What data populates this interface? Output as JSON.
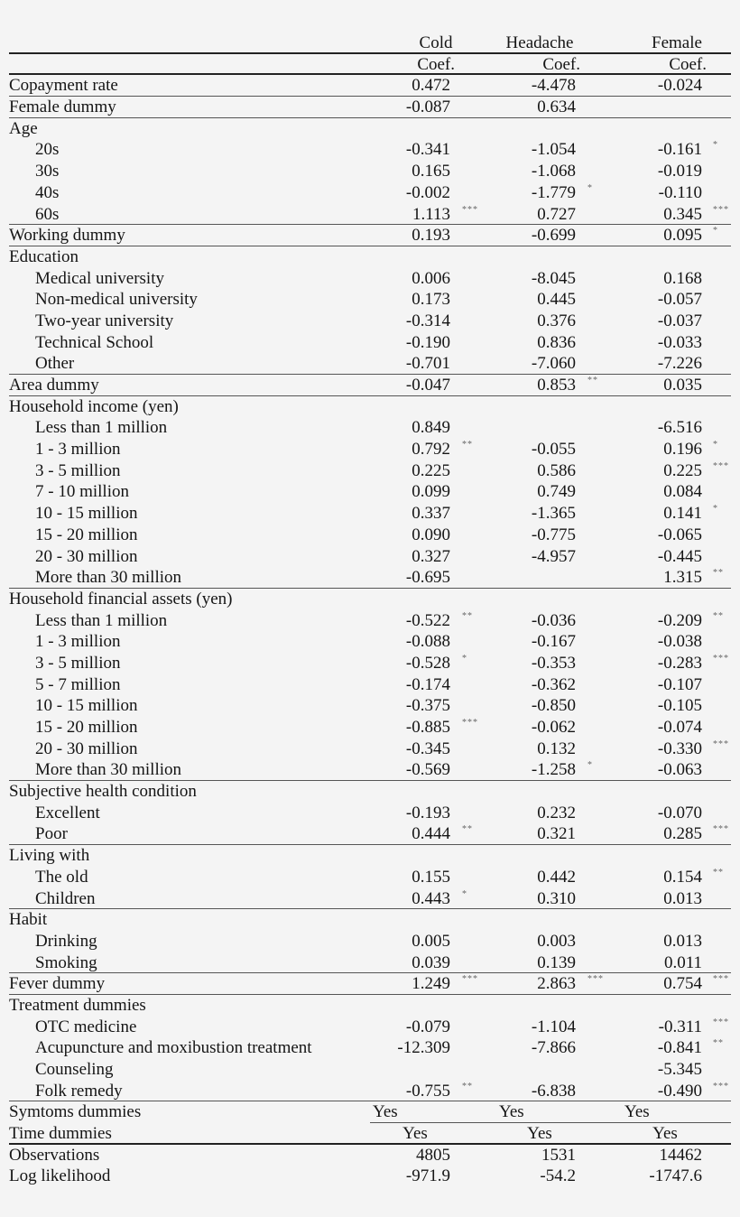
{
  "header": {
    "columns": [
      "Cold",
      "Headache",
      "Female"
    ],
    "subheader": [
      "Coef.",
      "Coef.",
      "Coef."
    ]
  },
  "rows": [
    {
      "label": "Copayment rate",
      "indent": false,
      "values": [
        "0.472",
        "-4.478",
        "-0.024"
      ],
      "sig": [
        "",
        "",
        ""
      ]
    },
    {
      "label": "Female dummy",
      "indent": false,
      "values": [
        "-0.087",
        "0.634",
        ""
      ],
      "sig": [
        "",
        "",
        ""
      ]
    },
    {
      "label": "Age",
      "indent": false,
      "values": [
        "",
        "",
        ""
      ],
      "sig": [
        "",
        "",
        ""
      ]
    },
    {
      "label": "20s",
      "indent": true,
      "values": [
        "-0.341",
        "-1.054",
        "-0.161"
      ],
      "sig": [
        "",
        "",
        "*"
      ]
    },
    {
      "label": "30s",
      "indent": true,
      "values": [
        "0.165",
        "-1.068",
        "-0.019"
      ],
      "sig": [
        "",
        "",
        ""
      ]
    },
    {
      "label": "40s",
      "indent": true,
      "values": [
        "-0.002",
        "-1.779",
        "-0.110"
      ],
      "sig": [
        "",
        "*",
        ""
      ]
    },
    {
      "label": "60s",
      "indent": true,
      "values": [
        "1.113",
        "0.727",
        "0.345"
      ],
      "sig": [
        "***",
        "",
        "***"
      ]
    },
    {
      "label": "Working dummy",
      "indent": false,
      "values": [
        "0.193",
        "-0.699",
        "0.095"
      ],
      "sig": [
        "",
        "",
        "*"
      ]
    },
    {
      "label": "Education",
      "indent": false,
      "values": [
        "",
        "",
        ""
      ],
      "sig": [
        "",
        "",
        ""
      ]
    },
    {
      "label": "Medical university",
      "indent": true,
      "values": [
        "0.006",
        "-8.045",
        "0.168"
      ],
      "sig": [
        "",
        "",
        ""
      ]
    },
    {
      "label": "Non-medical university",
      "indent": true,
      "values": [
        "0.173",
        "0.445",
        "-0.057"
      ],
      "sig": [
        "",
        "",
        ""
      ]
    },
    {
      "label": "Two-year university",
      "indent": true,
      "values": [
        "-0.314",
        "0.376",
        "-0.037"
      ],
      "sig": [
        "",
        "",
        ""
      ]
    },
    {
      "label": "Technical School",
      "indent": true,
      "values": [
        "-0.190",
        "0.836",
        "-0.033"
      ],
      "sig": [
        "",
        "",
        ""
      ]
    },
    {
      "label": "Other",
      "indent": true,
      "values": [
        "-0.701",
        "-7.060",
        "-7.226"
      ],
      "sig": [
        "",
        "",
        ""
      ]
    },
    {
      "label": "Area dummy",
      "indent": false,
      "values": [
        "-0.047",
        "0.853",
        "0.035"
      ],
      "sig": [
        "",
        "**",
        ""
      ]
    },
    {
      "label": "Household income (yen)",
      "indent": false,
      "values": [
        "",
        "",
        ""
      ],
      "sig": [
        "",
        "",
        ""
      ]
    },
    {
      "label": "Less than 1 million",
      "indent": true,
      "values": [
        "0.849",
        "",
        "-6.516"
      ],
      "sig": [
        "",
        "",
        ""
      ]
    },
    {
      "label": "1 - 3 million",
      "indent": true,
      "values": [
        "0.792",
        "-0.055",
        "0.196"
      ],
      "sig": [
        "**",
        "",
        "*"
      ]
    },
    {
      "label": "3 - 5 million",
      "indent": true,
      "values": [
        "0.225",
        "0.586",
        "0.225"
      ],
      "sig": [
        "",
        "",
        "***"
      ]
    },
    {
      "label": "7 - 10 million",
      "indent": true,
      "values": [
        "0.099",
        "0.749",
        "0.084"
      ],
      "sig": [
        "",
        "",
        ""
      ]
    },
    {
      "label": "10 - 15 million",
      "indent": true,
      "values": [
        "0.337",
        "-1.365",
        "0.141"
      ],
      "sig": [
        "",
        "",
        "*"
      ]
    },
    {
      "label": "15 - 20 million",
      "indent": true,
      "values": [
        "0.090",
        "-0.775",
        "-0.065"
      ],
      "sig": [
        "",
        "",
        ""
      ]
    },
    {
      "label": "20 - 30 million",
      "indent": true,
      "values": [
        "0.327",
        "-4.957",
        "-0.445"
      ],
      "sig": [
        "",
        "",
        ""
      ]
    },
    {
      "label": "More than 30 million",
      "indent": true,
      "values": [
        "-0.695",
        "",
        "1.315"
      ],
      "sig": [
        "",
        "",
        "**"
      ]
    },
    {
      "label": "Household financial assets (yen)",
      "indent": false,
      "values": [
        "",
        "",
        ""
      ],
      "sig": [
        "",
        "",
        ""
      ]
    },
    {
      "label": "Less than 1 million",
      "indent": true,
      "values": [
        "-0.522",
        "-0.036",
        "-0.209"
      ],
      "sig": [
        "**",
        "",
        "**"
      ]
    },
    {
      "label": "1 - 3 million",
      "indent": true,
      "values": [
        "-0.088",
        "-0.167",
        "-0.038"
      ],
      "sig": [
        "",
        "",
        ""
      ]
    },
    {
      "label": "3 - 5 million",
      "indent": true,
      "values": [
        "-0.528",
        "-0.353",
        "-0.283"
      ],
      "sig": [
        "*",
        "",
        "***"
      ]
    },
    {
      "label": "5 - 7 million",
      "indent": true,
      "values": [
        "-0.174",
        "-0.362",
        "-0.107"
      ],
      "sig": [
        "",
        "",
        ""
      ]
    },
    {
      "label": "10 - 15 million",
      "indent": true,
      "values": [
        "-0.375",
        "-0.850",
        "-0.105"
      ],
      "sig": [
        "",
        "",
        ""
      ]
    },
    {
      "label": "15 - 20 million",
      "indent": true,
      "values": [
        "-0.885",
        "-0.062",
        "-0.074"
      ],
      "sig": [
        "***",
        "",
        ""
      ]
    },
    {
      "label": "20 - 30 million",
      "indent": true,
      "values": [
        "-0.345",
        "0.132",
        "-0.330"
      ],
      "sig": [
        "",
        "",
        "***"
      ]
    },
    {
      "label": "More than 30 million",
      "indent": true,
      "values": [
        "-0.569",
        "-1.258",
        "-0.063"
      ],
      "sig": [
        "",
        "*",
        ""
      ]
    },
    {
      "label": "Subjective health condition",
      "indent": false,
      "values": [
        "",
        "",
        ""
      ],
      "sig": [
        "",
        "",
        ""
      ]
    },
    {
      "label": "Excellent",
      "indent": true,
      "values": [
        "-0.193",
        "0.232",
        "-0.070"
      ],
      "sig": [
        "",
        "",
        ""
      ]
    },
    {
      "label": "Poor",
      "indent": true,
      "values": [
        "0.444",
        "0.321",
        "0.285"
      ],
      "sig": [
        "**",
        "",
        "***"
      ]
    },
    {
      "label": "Living with",
      "indent": false,
      "values": [
        "",
        "",
        ""
      ],
      "sig": [
        "",
        "",
        ""
      ]
    },
    {
      "label": "The old",
      "indent": true,
      "values": [
        "0.155",
        "0.442",
        "0.154"
      ],
      "sig": [
        "",
        "",
        "**"
      ]
    },
    {
      "label": "Children",
      "indent": true,
      "values": [
        "0.443",
        "0.310",
        "0.013"
      ],
      "sig": [
        "*",
        "",
        ""
      ]
    },
    {
      "label": "Habit",
      "indent": false,
      "values": [
        "",
        "",
        ""
      ],
      "sig": [
        "",
        "",
        ""
      ]
    },
    {
      "label": "Drinking",
      "indent": true,
      "values": [
        "0.005",
        "0.003",
        "0.013"
      ],
      "sig": [
        "",
        "",
        ""
      ]
    },
    {
      "label": "Smoking",
      "indent": true,
      "values": [
        "0.039",
        "0.139",
        "0.011"
      ],
      "sig": [
        "",
        "",
        ""
      ]
    },
    {
      "label": "Fever dummy",
      "indent": false,
      "values": [
        "1.249",
        "2.863",
        "0.754"
      ],
      "sig": [
        "***",
        "***",
        "***"
      ]
    },
    {
      "label": "Treatment dummies",
      "indent": false,
      "values": [
        "",
        "",
        ""
      ],
      "sig": [
        "",
        "",
        ""
      ]
    },
    {
      "label": "OTC medicine",
      "indent": true,
      "values": [
        "-0.079",
        "-1.104",
        "-0.311"
      ],
      "sig": [
        "",
        "",
        "***"
      ]
    },
    {
      "label": "Acupuncture and moxibustion treatment",
      "indent": true,
      "values": [
        "-12.309",
        "-7.866",
        "-0.841"
      ],
      "sig": [
        "",
        "",
        "**"
      ]
    },
    {
      "label": "Counseling",
      "indent": true,
      "values": [
        "",
        "",
        "-5.345"
      ],
      "sig": [
        "",
        "",
        ""
      ]
    },
    {
      "label": "Folk remedy",
      "indent": true,
      "values": [
        "-0.755",
        "-6.838",
        "-0.490"
      ],
      "sig": [
        "**",
        "",
        "***"
      ]
    }
  ],
  "symptoms": {
    "label": "Symtoms dummies",
    "values": [
      "Yes",
      "Yes",
      "Yes"
    ]
  },
  "time": {
    "label": "Time dummies",
    "values": [
      "Yes",
      "Yes",
      "Yes"
    ]
  },
  "observations": {
    "label": "Observations",
    "values": [
      "4805",
      "1531",
      "14462"
    ]
  },
  "loglik": {
    "label": "Log likelihood",
    "values": [
      "-971.9",
      "-54.2",
      "-1747.6"
    ]
  }
}
